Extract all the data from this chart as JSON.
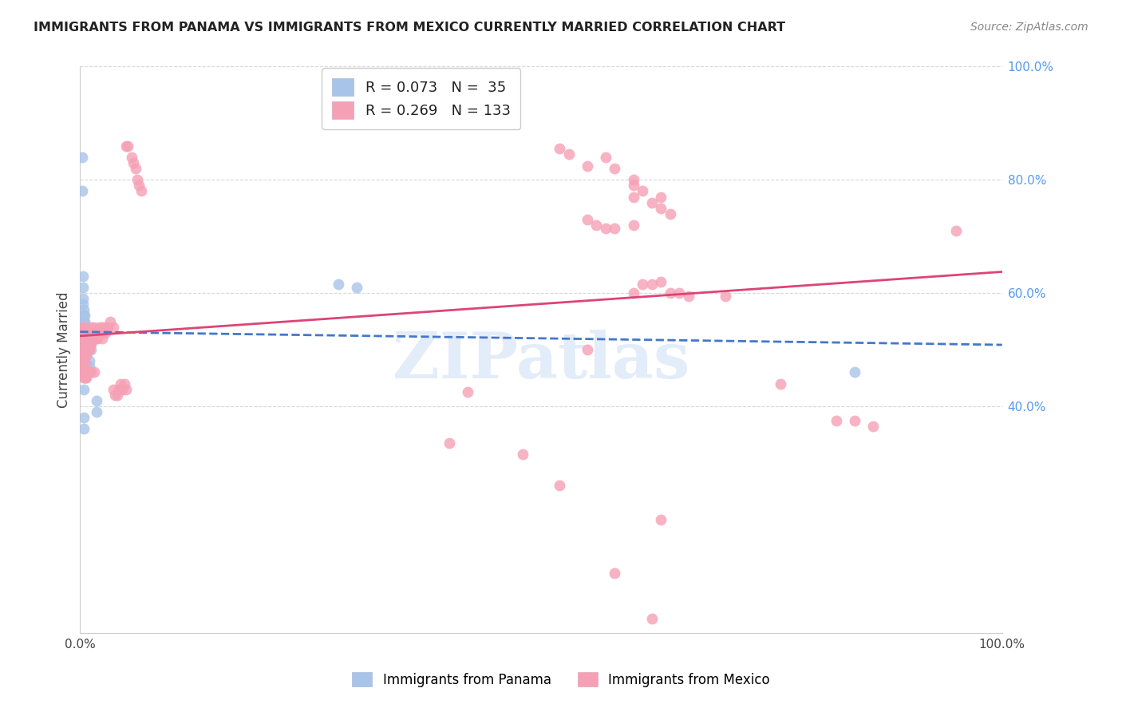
{
  "title": "IMMIGRANTS FROM PANAMA VS IMMIGRANTS FROM MEXICO CURRENTLY MARRIED CORRELATION CHART",
  "source": "Source: ZipAtlas.com",
  "ylabel": "Currently Married",
  "xlim": [
    0.0,
    1.0
  ],
  "ylim": [
    0.0,
    1.0
  ],
  "panama_R": 0.073,
  "panama_N": 35,
  "mexico_R": 0.269,
  "mexico_N": 133,
  "panama_color": "#a8c4e8",
  "mexico_color": "#f5a0b5",
  "panama_line_color": "#4477cc",
  "mexico_line_color": "#dd4477",
  "panama_scatter": [
    [
      0.002,
      0.84
    ],
    [
      0.002,
      0.78
    ],
    [
      0.003,
      0.63
    ],
    [
      0.003,
      0.61
    ],
    [
      0.003,
      0.59
    ],
    [
      0.003,
      0.58
    ],
    [
      0.004,
      0.57
    ],
    [
      0.004,
      0.56
    ],
    [
      0.004,
      0.55
    ],
    [
      0.004,
      0.54
    ],
    [
      0.004,
      0.53
    ],
    [
      0.004,
      0.52
    ],
    [
      0.004,
      0.51
    ],
    [
      0.004,
      0.5
    ],
    [
      0.005,
      0.56
    ],
    [
      0.005,
      0.55
    ],
    [
      0.005,
      0.53
    ],
    [
      0.005,
      0.52
    ],
    [
      0.006,
      0.51
    ],
    [
      0.006,
      0.5
    ],
    [
      0.006,
      0.49
    ],
    [
      0.007,
      0.5
    ],
    [
      0.007,
      0.49
    ],
    [
      0.008,
      0.5
    ],
    [
      0.01,
      0.48
    ],
    [
      0.01,
      0.47
    ],
    [
      0.012,
      0.5
    ],
    [
      0.004,
      0.43
    ],
    [
      0.004,
      0.38
    ],
    [
      0.004,
      0.36
    ],
    [
      0.018,
      0.41
    ],
    [
      0.018,
      0.39
    ],
    [
      0.28,
      0.615
    ],
    [
      0.3,
      0.61
    ],
    [
      0.84,
      0.46
    ]
  ],
  "mexico_scatter": [
    [
      0.003,
      0.54
    ],
    [
      0.003,
      0.53
    ],
    [
      0.003,
      0.52
    ],
    [
      0.003,
      0.51
    ],
    [
      0.003,
      0.5
    ],
    [
      0.003,
      0.49
    ],
    [
      0.003,
      0.48
    ],
    [
      0.004,
      0.54
    ],
    [
      0.004,
      0.53
    ],
    [
      0.004,
      0.52
    ],
    [
      0.004,
      0.51
    ],
    [
      0.004,
      0.5
    ],
    [
      0.004,
      0.49
    ],
    [
      0.004,
      0.48
    ],
    [
      0.004,
      0.47
    ],
    [
      0.005,
      0.53
    ],
    [
      0.005,
      0.52
    ],
    [
      0.005,
      0.51
    ],
    [
      0.005,
      0.5
    ],
    [
      0.005,
      0.49
    ],
    [
      0.005,
      0.48
    ],
    [
      0.005,
      0.47
    ],
    [
      0.006,
      0.52
    ],
    [
      0.006,
      0.51
    ],
    [
      0.006,
      0.5
    ],
    [
      0.006,
      0.49
    ],
    [
      0.007,
      0.52
    ],
    [
      0.007,
      0.51
    ],
    [
      0.007,
      0.5
    ],
    [
      0.007,
      0.49
    ],
    [
      0.008,
      0.52
    ],
    [
      0.008,
      0.51
    ],
    [
      0.008,
      0.5
    ],
    [
      0.009,
      0.53
    ],
    [
      0.009,
      0.51
    ],
    [
      0.009,
      0.5
    ],
    [
      0.01,
      0.53
    ],
    [
      0.01,
      0.52
    ],
    [
      0.01,
      0.51
    ],
    [
      0.01,
      0.5
    ],
    [
      0.011,
      0.53
    ],
    [
      0.011,
      0.52
    ],
    [
      0.011,
      0.51
    ],
    [
      0.012,
      0.54
    ],
    [
      0.012,
      0.52
    ],
    [
      0.012,
      0.51
    ],
    [
      0.013,
      0.53
    ],
    [
      0.013,
      0.52
    ],
    [
      0.015,
      0.54
    ],
    [
      0.015,
      0.53
    ],
    [
      0.015,
      0.52
    ],
    [
      0.017,
      0.53
    ],
    [
      0.017,
      0.52
    ],
    [
      0.019,
      0.53
    ],
    [
      0.019,
      0.52
    ],
    [
      0.021,
      0.54
    ],
    [
      0.021,
      0.53
    ],
    [
      0.024,
      0.54
    ],
    [
      0.024,
      0.52
    ],
    [
      0.027,
      0.54
    ],
    [
      0.027,
      0.53
    ],
    [
      0.03,
      0.54
    ],
    [
      0.033,
      0.55
    ],
    [
      0.036,
      0.54
    ],
    [
      0.004,
      0.47
    ],
    [
      0.004,
      0.46
    ],
    [
      0.004,
      0.45
    ],
    [
      0.005,
      0.46
    ],
    [
      0.005,
      0.45
    ],
    [
      0.006,
      0.46
    ],
    [
      0.006,
      0.45
    ],
    [
      0.007,
      0.46
    ],
    [
      0.007,
      0.45
    ],
    [
      0.008,
      0.46
    ],
    [
      0.009,
      0.46
    ],
    [
      0.01,
      0.46
    ],
    [
      0.012,
      0.46
    ],
    [
      0.015,
      0.46
    ],
    [
      0.036,
      0.43
    ],
    [
      0.038,
      0.42
    ],
    [
      0.04,
      0.42
    ],
    [
      0.042,
      0.43
    ],
    [
      0.044,
      0.44
    ],
    [
      0.046,
      0.43
    ],
    [
      0.048,
      0.44
    ],
    [
      0.05,
      0.43
    ],
    [
      0.05,
      0.86
    ],
    [
      0.052,
      0.86
    ],
    [
      0.056,
      0.84
    ],
    [
      0.058,
      0.83
    ],
    [
      0.06,
      0.82
    ],
    [
      0.062,
      0.8
    ],
    [
      0.064,
      0.79
    ],
    [
      0.066,
      0.78
    ],
    [
      0.52,
      0.855
    ],
    [
      0.53,
      0.845
    ],
    [
      0.55,
      0.825
    ],
    [
      0.57,
      0.84
    ],
    [
      0.58,
      0.82
    ],
    [
      0.6,
      0.8
    ],
    [
      0.6,
      0.79
    ],
    [
      0.6,
      0.77
    ],
    [
      0.61,
      0.78
    ],
    [
      0.62,
      0.76
    ],
    [
      0.63,
      0.77
    ],
    [
      0.63,
      0.75
    ],
    [
      0.64,
      0.74
    ],
    [
      0.55,
      0.73
    ],
    [
      0.56,
      0.72
    ],
    [
      0.57,
      0.715
    ],
    [
      0.58,
      0.715
    ],
    [
      0.6,
      0.72
    ],
    [
      0.6,
      0.6
    ],
    [
      0.61,
      0.615
    ],
    [
      0.62,
      0.615
    ],
    [
      0.63,
      0.62
    ],
    [
      0.64,
      0.6
    ],
    [
      0.65,
      0.6
    ],
    [
      0.66,
      0.595
    ],
    [
      0.7,
      0.595
    ],
    [
      0.76,
      0.44
    ],
    [
      0.82,
      0.375
    ],
    [
      0.84,
      0.375
    ],
    [
      0.86,
      0.365
    ],
    [
      0.95,
      0.71
    ],
    [
      0.55,
      0.5
    ],
    [
      0.4,
      0.335
    ],
    [
      0.42,
      0.425
    ],
    [
      0.48,
      0.315
    ],
    [
      0.52,
      0.26
    ],
    [
      0.58,
      0.105
    ],
    [
      0.62,
      0.025
    ],
    [
      0.63,
      0.2
    ]
  ],
  "watermark": "ZIPatlas",
  "background_color": "#ffffff",
  "grid_color": "#d8d8d8"
}
